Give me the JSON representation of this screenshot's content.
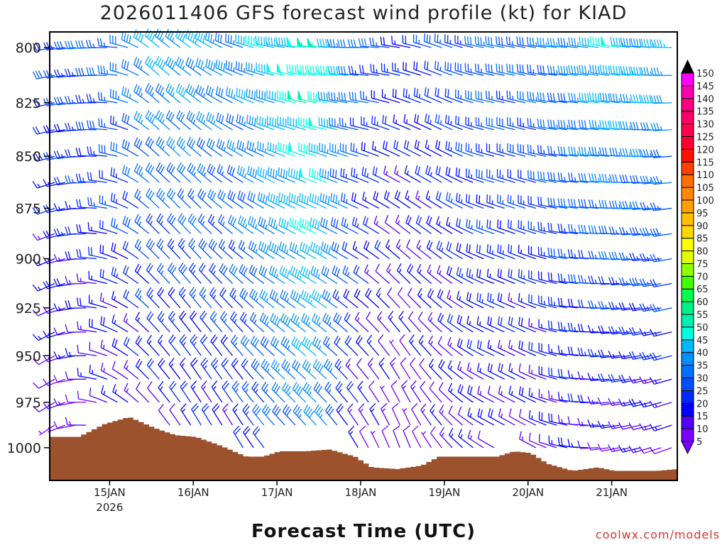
{
  "title": "2026011406 GFS forecast wind profile (kt) for KIAD",
  "credit": "coolwx.com/models",
  "chart_data": {
    "type": "wind-barb-time-height",
    "title": "2026011406 GFS forecast wind profile (kt) for KIAD",
    "xlabel": "Forecast Time (UTC)",
    "ylabel": "",
    "xlim_days": [
      14.25,
      21.75
    ],
    "ylim_hpa": [
      793,
      1018
    ],
    "x_ticks": [
      {
        "day": 15,
        "label": "15JAN",
        "sublabel": "2026"
      },
      {
        "day": 16,
        "label": "16JAN"
      },
      {
        "day": 17,
        "label": "17JAN"
      },
      {
        "day": 18,
        "label": "18JAN"
      },
      {
        "day": 19,
        "label": "19JAN"
      },
      {
        "day": 20,
        "label": "20JAN"
      },
      {
        "day": 21,
        "label": "21JAN"
      }
    ],
    "y_ticks": [
      "800",
      "825",
      "850",
      "875",
      "900",
      "925",
      "950",
      "975",
      "1000"
    ],
    "levels_hpa": [
      800,
      812.5,
      825,
      837.5,
      850,
      862.5,
      875,
      887.5,
      900,
      912.5,
      925,
      937.5,
      950,
      962.5,
      975,
      987.5,
      1000
    ],
    "time_step_days": 0.125,
    "wind_anchors": [
      {
        "day": 14.25,
        "top": [
          260,
          25
        ],
        "bot": [
          230,
          8
        ]
      },
      {
        "day": 15.0,
        "top": [
          270,
          30
        ],
        "bot": [
          300,
          10
        ]
      },
      {
        "day": 15.5,
        "top": [
          310,
          40
        ],
        "bot": [
          320,
          12
        ]
      },
      {
        "day": 16.0,
        "top": [
          305,
          40
        ],
        "bot": [
          330,
          15
        ]
      },
      {
        "day": 16.5,
        "top": [
          290,
          35
        ],
        "bot": [
          330,
          18
        ]
      },
      {
        "day": 17.0,
        "top": [
          280,
          45
        ],
        "bot": [
          320,
          30
        ]
      },
      {
        "day": 17.5,
        "top": [
          275,
          52
        ],
        "bot": [
          320,
          35
        ]
      },
      {
        "day": 18.0,
        "top": [
          270,
          30
        ],
        "bot": [
          330,
          12
        ]
      },
      {
        "day": 18.5,
        "top": [
          280,
          20
        ],
        "bot": [
          340,
          8
        ]
      },
      {
        "day": 19.0,
        "top": [
          290,
          25
        ],
        "bot": [
          320,
          12
        ]
      },
      {
        "day": 19.5,
        "top": [
          280,
          30
        ],
        "bot": [
          300,
          15
        ]
      },
      {
        "day": 20.0,
        "top": [
          280,
          30
        ],
        "bot": [
          300,
          12
        ]
      },
      {
        "day": 20.5,
        "top": [
          275,
          35
        ],
        "bot": [
          280,
          15
        ]
      },
      {
        "day": 21.0,
        "top": [
          280,
          45
        ],
        "bot": [
          260,
          12
        ]
      },
      {
        "day": 21.75,
        "top": [
          270,
          40
        ],
        "bot": [
          250,
          12
        ]
      }
    ],
    "surface_pressure": [
      {
        "day": 14.25,
        "p": 994
      },
      {
        "day": 14.6,
        "p": 994
      },
      {
        "day": 14.9,
        "p": 987
      },
      {
        "day": 15.2,
        "p": 983
      },
      {
        "day": 15.5,
        "p": 989
      },
      {
        "day": 15.75,
        "p": 993
      },
      {
        "day": 16.0,
        "p": 994
      },
      {
        "day": 16.3,
        "p": 999
      },
      {
        "day": 16.6,
        "p": 1005
      },
      {
        "day": 16.8,
        "p": 1005
      },
      {
        "day": 17.0,
        "p": 1002
      },
      {
        "day": 17.3,
        "p": 1002
      },
      {
        "day": 17.6,
        "p": 1001
      },
      {
        "day": 17.9,
        "p": 1005
      },
      {
        "day": 18.1,
        "p": 1011
      },
      {
        "day": 18.4,
        "p": 1012
      },
      {
        "day": 18.7,
        "p": 1010
      },
      {
        "day": 18.9,
        "p": 1005
      },
      {
        "day": 19.3,
        "p": 1005
      },
      {
        "day": 19.6,
        "p": 1005
      },
      {
        "day": 19.8,
        "p": 1002
      },
      {
        "day": 20.0,
        "p": 1003
      },
      {
        "day": 20.2,
        "p": 1009
      },
      {
        "day": 20.5,
        "p": 1013
      },
      {
        "day": 20.8,
        "p": 1011
      },
      {
        "day": 21.0,
        "p": 1013
      },
      {
        "day": 21.5,
        "p": 1013
      },
      {
        "day": 21.75,
        "p": 1012
      }
    ],
    "colorbar": {
      "labels": [
        "5",
        "10",
        "15",
        "20",
        "25",
        "30",
        "35",
        "40",
        "45",
        "50",
        "55",
        "60",
        "65",
        "70",
        "75",
        "80",
        "85",
        "90",
        "95",
        "100",
        "105",
        "110",
        "115",
        "120",
        "125",
        "130",
        "135",
        "140",
        "145",
        "150"
      ],
      "colors": [
        "#7a00ff",
        "#5000ff",
        "#0000ff",
        "#0028ff",
        "#0050ff",
        "#0070ff",
        "#0090ff",
        "#00b8ff",
        "#00ffe0",
        "#00f0b0",
        "#00f08a",
        "#00ff50",
        "#40ff00",
        "#90ff00",
        "#e0ff00",
        "#ffff00",
        "#ffd800",
        "#ffc000",
        "#ffa000",
        "#ff8800",
        "#ff7000",
        "#ff4000",
        "#ff1000",
        "#ff0030",
        "#ff0050",
        "#ff0068",
        "#ff0080",
        "#ff00b0",
        "#ff00ff"
      ],
      "under_color": "#7a00ff",
      "over_color": "#000000"
    },
    "terrain_color": "#9c522d"
  }
}
